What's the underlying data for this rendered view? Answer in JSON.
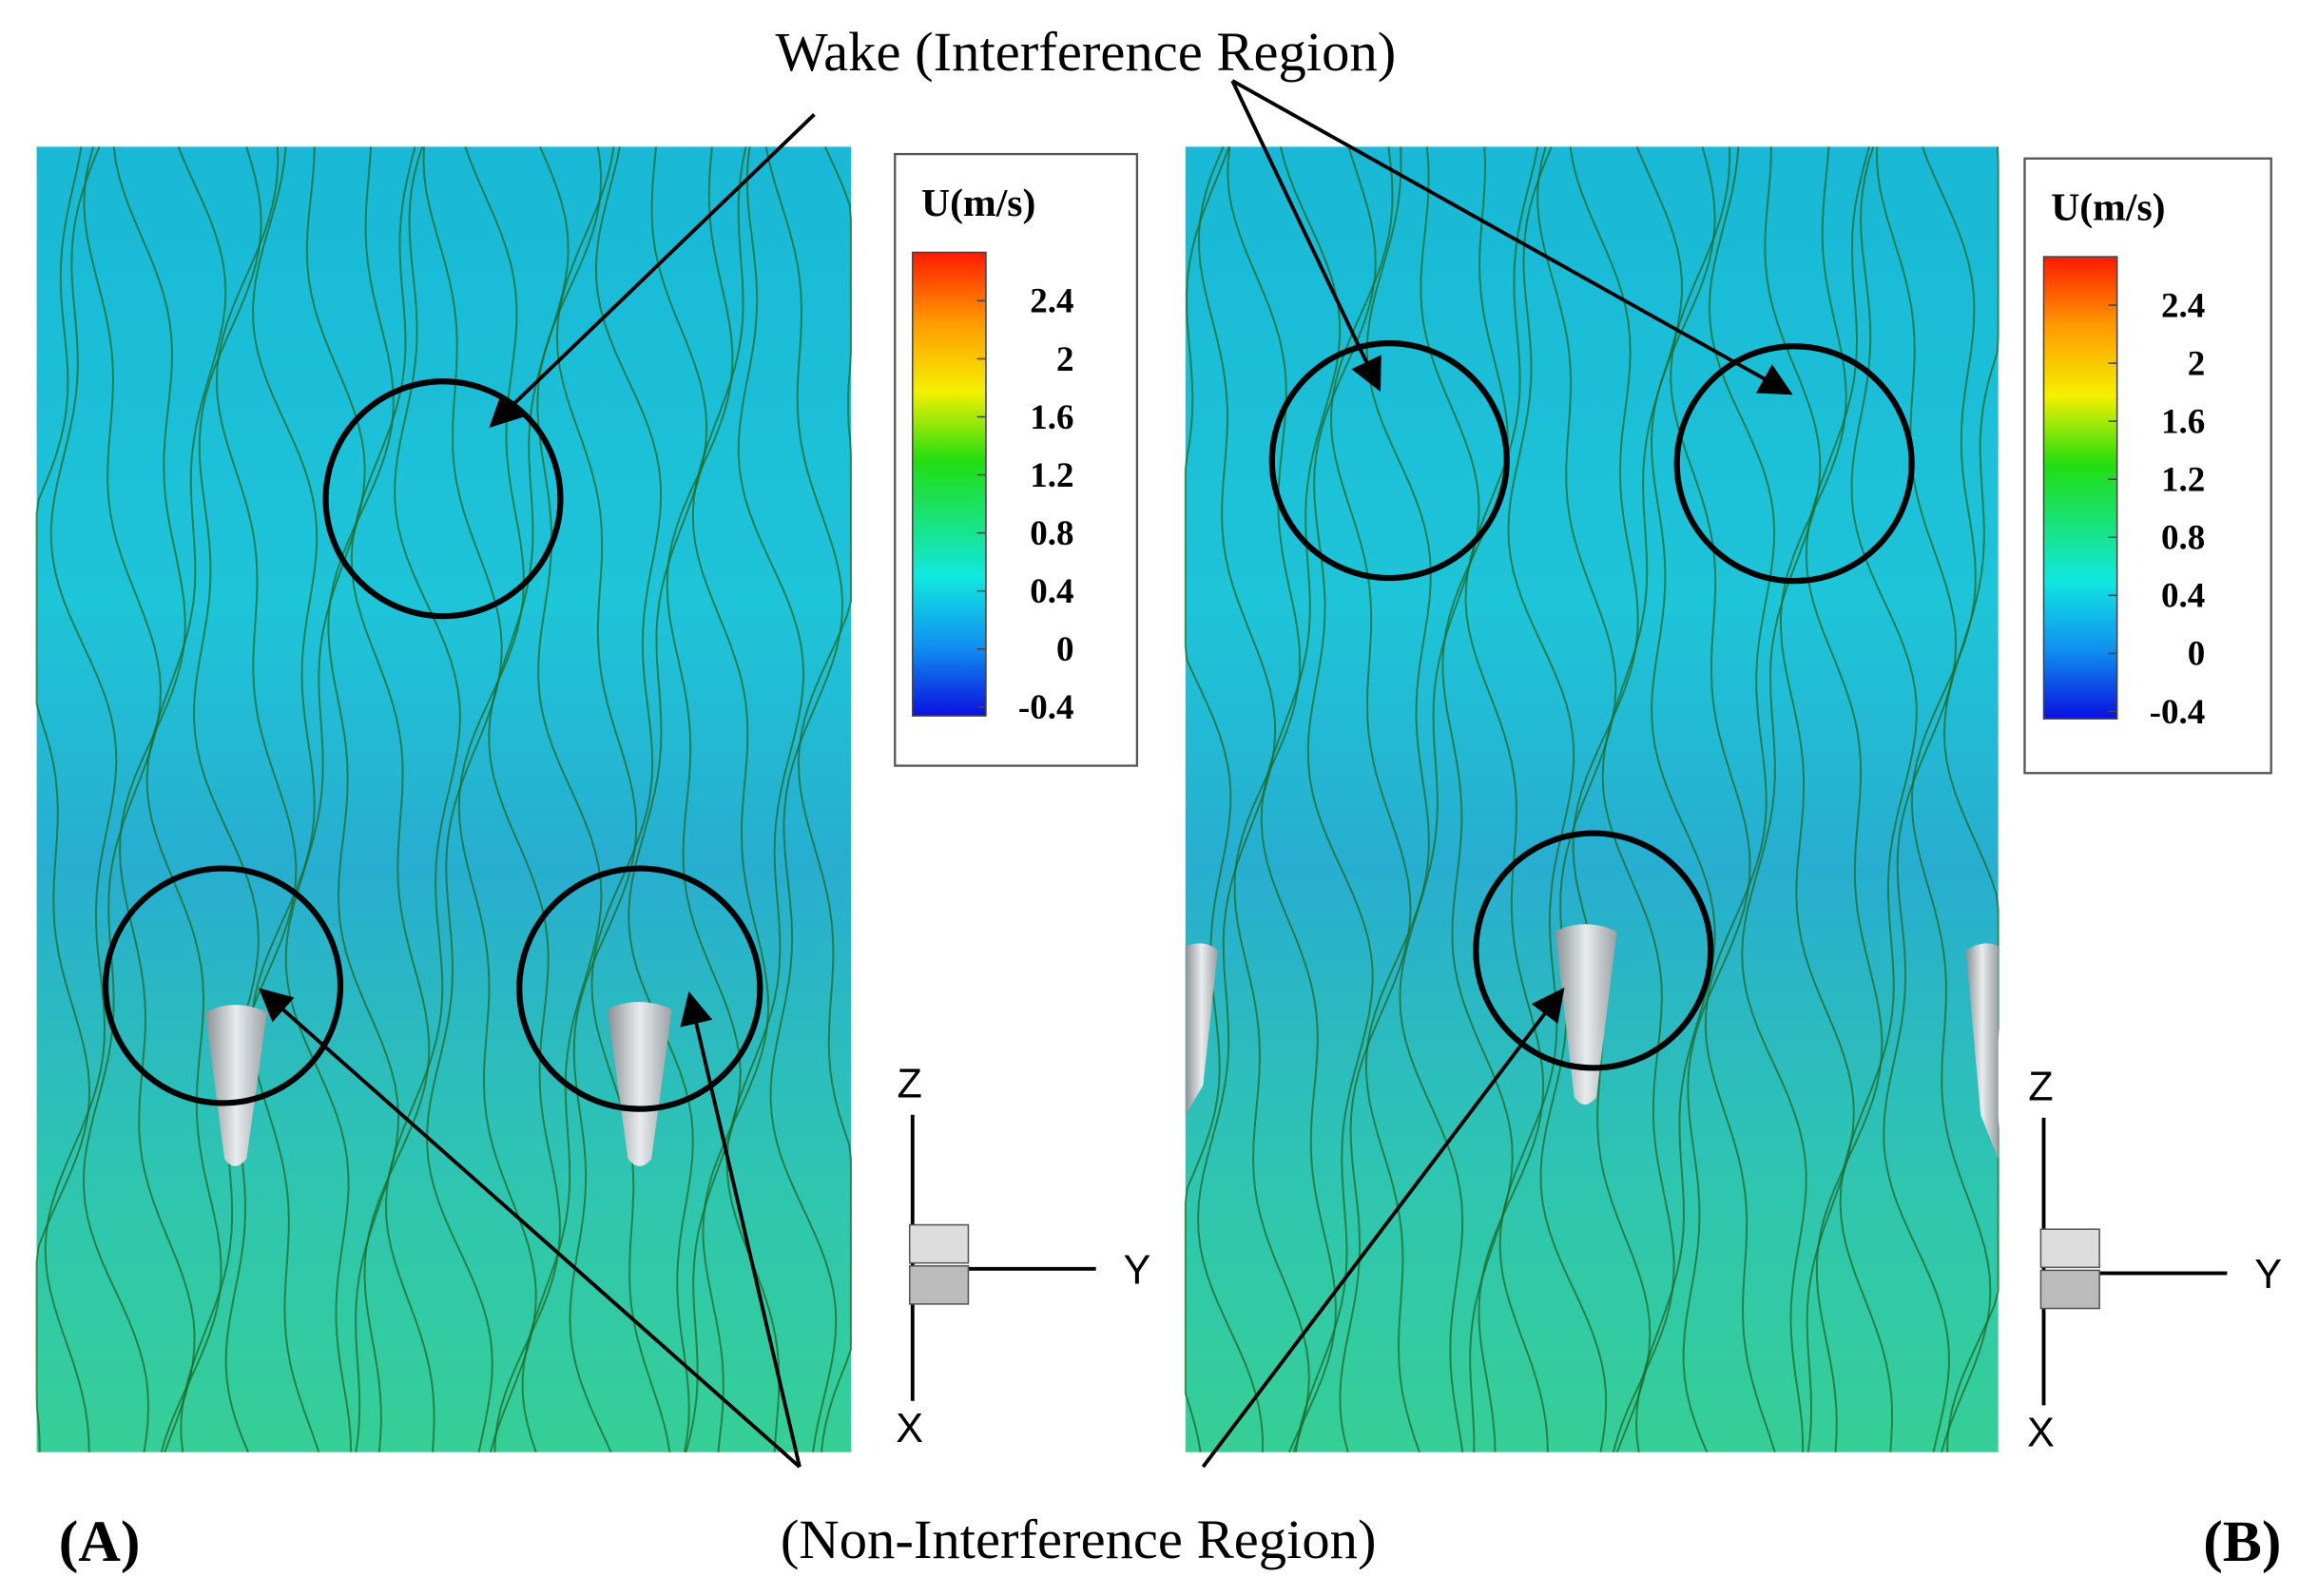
{
  "header": {
    "top_annotation": "Wake (Interference Region)",
    "bottom_annotation": "(Non-Interference Region)"
  },
  "panels": [
    {
      "label": "(A)",
      "legend": {
        "title": "U(m/s)",
        "ticks": [
          2.4,
          2,
          1.6,
          1.2,
          0.8,
          0.4,
          0,
          -0.4
        ]
      },
      "axes": {
        "vertical": "Z",
        "horizontal": "Y",
        "depth": "X"
      }
    },
    {
      "label": "(B)",
      "legend": {
        "title": "U(m/s)",
        "ticks": [
          2.4,
          2,
          1.6,
          1.2,
          0.8,
          0.4,
          0,
          -0.4
        ]
      },
      "axes": {
        "vertical": "Z",
        "horizontal": "Y",
        "depth": "X"
      }
    }
  ]
}
